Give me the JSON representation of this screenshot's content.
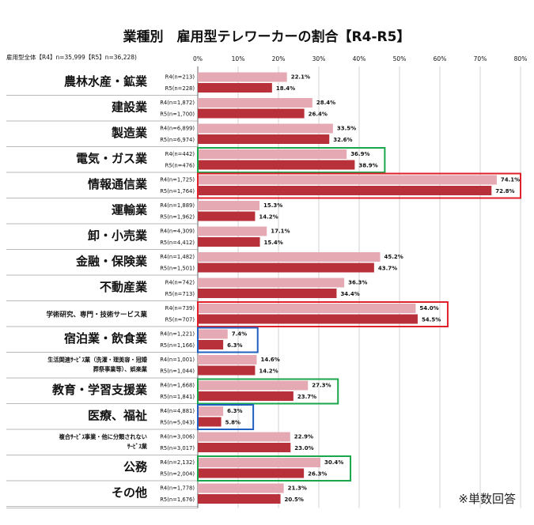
{
  "chart_data": {
    "type": "bar",
    "orientation": "horizontal",
    "title": "業種別　雇用型テレワーカーの割合【R4-R5】",
    "header_label": "雇用型全体【R4】n=35,999【R5】n=36,228)",
    "xlim": [
      0,
      80
    ],
    "x_ticks": [
      "0%",
      "10%",
      "20%",
      "30%",
      "40%",
      "50%",
      "60%",
      "70%",
      "80%"
    ],
    "grid": true,
    "legend": "none",
    "series": [
      {
        "name": "R4",
        "color": "#e4a9b3"
      },
      {
        "name": "R5",
        "color": "#b8303a"
      }
    ],
    "categories": [
      {
        "label": "農林水産・鉱業",
        "label2": "",
        "r4_n": "R4(n=213)",
        "r5_n": "R5(n=228)",
        "r4": 22.1,
        "r5": 18.4,
        "r4_text": "22.1%",
        "r5_text": "18.4%"
      },
      {
        "label": "建設業",
        "label2": "",
        "r4_n": "R4(n=1,872)",
        "r5_n": "R5(n=1,700)",
        "r4": 28.4,
        "r5": 26.4,
        "r4_text": "28.4%",
        "r5_text": "26.4%"
      },
      {
        "label": "製造業",
        "label2": "",
        "r4_n": "R4(n=6,899)",
        "r5_n": "R5(n=6,974)",
        "r4": 33.5,
        "r5": 32.6,
        "r4_text": "33.5%",
        "r5_text": "32.6%"
      },
      {
        "label": "電気・ガス業",
        "label2": "",
        "r4_n": "R4(n=442)",
        "r5_n": "R5(n=476)",
        "r4": 36.9,
        "r5": 38.9,
        "r4_text": "36.9%",
        "r5_text": "38.9%"
      },
      {
        "label": "情報通信業",
        "label2": "",
        "r4_n": "R4(n=1,725)",
        "r5_n": "R5(n=1,764)",
        "r4": 74.1,
        "r5": 72.8,
        "r4_text": "74.1%",
        "r5_text": "72.8%"
      },
      {
        "label": "運輸業",
        "label2": "",
        "r4_n": "R4(n=1,889)",
        "r5_n": "R5(n=1,962)",
        "r4": 15.3,
        "r5": 14.2,
        "r4_text": "15.3%",
        "r5_text": "14.2%"
      },
      {
        "label": "卸・小売業",
        "label2": "",
        "r4_n": "R4(n=4,309)",
        "r5_n": "R5(n=4,412)",
        "r4": 17.1,
        "r5": 15.4,
        "r4_text": "17.1%",
        "r5_text": "15.4%"
      },
      {
        "label": "金融・保険業",
        "label2": "",
        "r4_n": "R4(n=1,482)",
        "r5_n": "R5(n=1,501)",
        "r4": 45.2,
        "r5": 43.7,
        "r4_text": "45.2%",
        "r5_text": "43.7%"
      },
      {
        "label": "不動産業",
        "label2": "",
        "r4_n": "R4(n=742)",
        "r5_n": "R5(n=713)",
        "r4": 36.3,
        "r5": 34.4,
        "r4_text": "36.3%",
        "r5_text": "34.4%"
      },
      {
        "label": "学術研究、専門・技術サービス業",
        "label2": "",
        "r4_n": "R4(n=739)",
        "r5_n": "R5(n=707)",
        "r4": 54.0,
        "r5": 54.5,
        "r4_text": "54.0%",
        "r5_text": "54.5%"
      },
      {
        "label": "宿泊業・飲食業",
        "label2": "",
        "r4_n": "R4(n=1,221)",
        "r5_n": "R5(n=1,166)",
        "r4": 7.4,
        "r5": 6.3,
        "r4_text": "7.4%",
        "r5_text": "6.3%"
      },
      {
        "label": "生活関連ｻｰﾋﾞｽ業（洗濯・理美容・冠婚",
        "label2": "葬祭事業等）、娯楽業",
        "r4_n": "R4(n=1,001)",
        "r5_n": "R5(n=1,044)",
        "r4": 14.6,
        "r5": 14.2,
        "r4_text": "14.6%",
        "r5_text": "14.2%"
      },
      {
        "label": "教育・学習支援業",
        "label2": "",
        "r4_n": "R4(n=1,668)",
        "r5_n": "R5(n=1,841)",
        "r4": 27.3,
        "r5": 23.7,
        "r4_text": "27.3%",
        "r5_text": "23.7%"
      },
      {
        "label": "医療、福祉",
        "label2": "",
        "r4_n": "R4(n=4,881)",
        "r5_n": "R5(n=5,043)",
        "r4": 6.3,
        "r5": 5.8,
        "r4_text": "6.3%",
        "r5_text": "5.8%"
      },
      {
        "label": "複合ｻｰﾋﾞｽ事業・他に分類されない",
        "label2": "ｻｰﾋﾞｽ業",
        "r4_n": "R4(n=3,006)",
        "r5_n": "R5(n=3,017)",
        "r4": 22.9,
        "r5": 23.0,
        "r4_text": "22.9%",
        "r5_text": "23.0%"
      },
      {
        "label": "公務",
        "label2": "",
        "r4_n": "R4(n=2,132)",
        "r5_n": "R5(n=2,004)",
        "r4": 30.4,
        "r5": 26.3,
        "r4_text": "30.4%",
        "r5_text": "26.3%"
      },
      {
        "label": "その他",
        "label2": "",
        "r4_n": "R4(n=1,778)",
        "r5_n": "R5(n=1,676)",
        "r4": 21.3,
        "r5": 20.5,
        "r4_text": "21.3%",
        "r5_text": "20.5%"
      }
    ],
    "highlights": [
      {
        "category": "電気・ガス業",
        "color": "#1aa64a"
      },
      {
        "category": "情報通信業",
        "color": "#e0202a"
      },
      {
        "category": "学術研究、専門・技術サービス業",
        "color": "#e0202a"
      },
      {
        "category": "宿泊業・飲食業",
        "color": "#2060c0"
      },
      {
        "category": "教育・学習支援業",
        "color": "#1aa64a"
      },
      {
        "category": "医療、福祉",
        "color": "#2060c0"
      },
      {
        "category": "公務",
        "color": "#1aa64a"
      }
    ],
    "annotation": "※単数回答"
  }
}
